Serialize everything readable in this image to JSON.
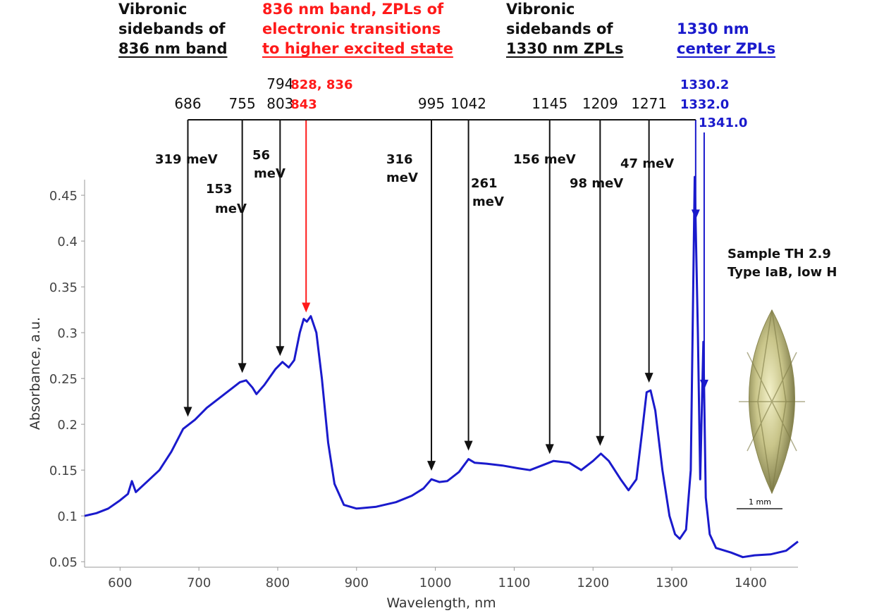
{
  "chart_data": {
    "type": "line",
    "x_label": "Wavelength, nm",
    "y_label": "Absorbance, a.u.",
    "xlim": [
      555,
      1460
    ],
    "ylim": [
      0.044,
      0.467
    ],
    "xticks": [
      600,
      700,
      800,
      900,
      1000,
      1100,
      1200,
      1300,
      1400
    ],
    "yticks": [
      0.05,
      0.1,
      0.15,
      0.2,
      0.25,
      0.3,
      0.35,
      0.4,
      0.45
    ],
    "x": [
      555,
      570,
      585,
      600,
      610,
      615,
      620,
      635,
      650,
      665,
      680,
      695,
      710,
      725,
      740,
      752,
      760,
      768,
      773,
      783,
      797,
      806,
      814,
      821,
      828,
      833,
      837,
      842,
      849,
      856,
      864,
      872,
      884,
      900,
      925,
      950,
      970,
      985,
      995,
      1005,
      1015,
      1030,
      1042,
      1050,
      1065,
      1085,
      1105,
      1120,
      1135,
      1150,
      1170,
      1185,
      1200,
      1210,
      1220,
      1235,
      1245,
      1255,
      1262,
      1268,
      1273,
      1279,
      1288,
      1297,
      1304,
      1310,
      1318,
      1324,
      1329,
      1333,
      1336,
      1340,
      1343,
      1348,
      1356,
      1375,
      1390,
      1405,
      1425,
      1445,
      1460
    ],
    "series": [
      {
        "color": "#1a1acc",
        "values": [
          0.1,
          0.103,
          0.108,
          0.117,
          0.124,
          0.138,
          0.126,
          0.138,
          0.15,
          0.17,
          0.195,
          0.205,
          0.218,
          0.228,
          0.238,
          0.246,
          0.248,
          0.24,
          0.233,
          0.243,
          0.26,
          0.268,
          0.262,
          0.27,
          0.3,
          0.315,
          0.312,
          0.318,
          0.3,
          0.25,
          0.18,
          0.135,
          0.112,
          0.108,
          0.11,
          0.115,
          0.122,
          0.13,
          0.14,
          0.137,
          0.138,
          0.148,
          0.162,
          0.158,
          0.157,
          0.155,
          0.152,
          0.15,
          0.155,
          0.16,
          0.158,
          0.15,
          0.16,
          0.168,
          0.16,
          0.14,
          0.128,
          0.14,
          0.19,
          0.235,
          0.237,
          0.215,
          0.15,
          0.1,
          0.08,
          0.075,
          0.085,
          0.15,
          0.47,
          0.3,
          0.14,
          0.29,
          0.12,
          0.08,
          0.065,
          0.06,
          0.055,
          0.057,
          0.058,
          0.062,
          0.072
        ]
      }
    ],
    "headers": [
      {
        "lines": [
          "Vibronic",
          "sidebands of",
          "836 nm band"
        ],
        "color": "#111111"
      },
      {
        "lines": [
          "836 nm band, ZPLs of",
          "electronic transitions",
          "to higher excited state"
        ],
        "color": "#ff1a1a"
      },
      {
        "lines": [
          "Vibronic",
          "sidebands of",
          "1330 nm ZPLs"
        ],
        "color": "#111111"
      },
      {
        "lines": [
          "1330 nm",
          "center ZPLs"
        ],
        "color": "#1a1acc"
      }
    ],
    "arrows": [
      {
        "value": 686,
        "label_lines": [
          "686"
        ],
        "energy_lines": [
          "319 meV"
        ],
        "color": "#111111"
      },
      {
        "value": 755,
        "label_lines": [
          "755"
        ],
        "energy_lines": [
          "153",
          "meV"
        ],
        "color": "#111111"
      },
      {
        "value": 803,
        "label_lines": [
          "794",
          "803"
        ],
        "energy_lines": [
          "56",
          "meV"
        ],
        "color": "#111111"
      },
      {
        "value": 836,
        "label_lines": [
          "828, 836",
          "843"
        ],
        "energy_lines": [],
        "color": "#ff1a1a"
      },
      {
        "value": 995,
        "label_lines": [
          "995"
        ],
        "energy_lines": [
          "316",
          "meV"
        ],
        "color": "#111111"
      },
      {
        "value": 1042,
        "label_lines": [
          "1042"
        ],
        "energy_lines": [
          "261",
          "meV"
        ],
        "color": "#111111"
      },
      {
        "value": 1145,
        "label_lines": [
          "1145"
        ],
        "energy_lines": [
          "156 meV"
        ],
        "color": "#111111"
      },
      {
        "value": 1209,
        "label_lines": [
          "1209"
        ],
        "energy_lines": [
          "98 meV"
        ],
        "color": "#111111"
      },
      {
        "value": 1271,
        "label_lines": [
          "1271"
        ],
        "energy_lines": [
          "47 meV"
        ],
        "color": "#111111"
      },
      {
        "value": 1330.2,
        "label_lines": [
          "1330.2",
          "1332.0"
        ],
        "energy_lines": [],
        "color": "#1a1acc"
      },
      {
        "value": 1341,
        "label_lines": [
          "1341.0"
        ],
        "energy_lines": [],
        "color": "#1a1acc"
      }
    ],
    "sample_lines": [
      "Sample TH 2.9",
      "Type IaB, low H"
    ],
    "scale_bar_label": "1 mm"
  }
}
